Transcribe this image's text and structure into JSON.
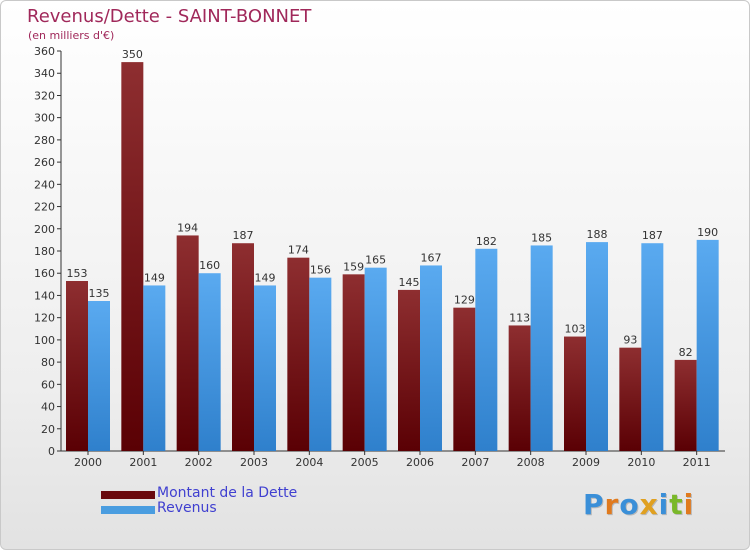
{
  "title": "Revenus/Dette - SAINT-BONNET",
  "subtitle": "(en milliers d'€)",
  "logo_text": "Proxiti",
  "colors": {
    "dette": "#7a1418",
    "revenus": "#4a9de0",
    "title": "#a0285a",
    "legend_text": "#4040d0"
  },
  "legend": {
    "items": [
      {
        "label": "Montant de la Dette",
        "color": "#6a0a0e"
      },
      {
        "label": "Revenus",
        "color": "#4a9de0"
      }
    ]
  },
  "chart_data": {
    "type": "bar",
    "title": "Revenus/Dette - SAINT-BONNET",
    "subtitle": "(en milliers d'€)",
    "categories": [
      "2000",
      "2001",
      "2002",
      "2003",
      "2004",
      "2005",
      "2006",
      "2007",
      "2008",
      "2009",
      "2010",
      "2011"
    ],
    "series": [
      {
        "name": "Montant de la Dette",
        "values": [
          153,
          350,
          194,
          187,
          174,
          159,
          145,
          129,
          113,
          103,
          93,
          82
        ]
      },
      {
        "name": "Revenus",
        "values": [
          135,
          149,
          160,
          149,
          156,
          165,
          167,
          182,
          185,
          188,
          187,
          190
        ]
      }
    ],
    "ylim": [
      0,
      360
    ],
    "yticks": [
      0,
      20,
      40,
      60,
      80,
      100,
      120,
      140,
      160,
      180,
      200,
      220,
      240,
      260,
      280,
      300,
      320,
      340,
      360
    ],
    "grid": false,
    "legend_position": "bottom-left"
  }
}
